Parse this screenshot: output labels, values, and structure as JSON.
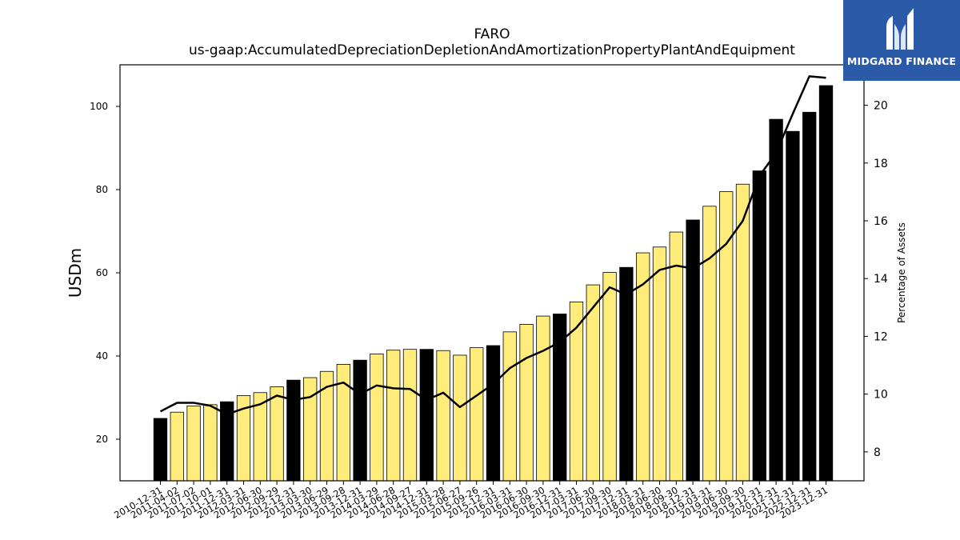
{
  "chart_data": {
    "type": "bar",
    "title": "FARO",
    "subtitle": "us-gaap:AccumulatedDepreciationDepletionAndAmortizationPropertyPlantAndEquipment",
    "ylabel": "USDm",
    "y2label": "Percentage of Assets",
    "ylim": [
      10,
      110
    ],
    "y2lim": [
      7.0,
      21.4
    ],
    "yticks": [
      20,
      40,
      60,
      80,
      100
    ],
    "y2ticks": [
      8,
      10,
      12,
      14,
      16,
      18,
      20
    ],
    "categories": [
      "2010-12-31",
      "2011-04-02",
      "2011-07-02",
      "2011-10-01",
      "2011-12-31",
      "2012-03-31",
      "2012-06-30",
      "2012-09-29",
      "2012-12-31",
      "2013-03-30",
      "2013-06-29",
      "2013-09-28",
      "2013-12-31",
      "2014-03-29",
      "2014-06-28",
      "2014-09-27",
      "2014-12-31",
      "2015-03-28",
      "2015-06-27",
      "2015-09-26",
      "2015-12-31",
      "2016-03-31",
      "2016-06-30",
      "2016-09-30",
      "2016-12-31",
      "2017-03-31",
      "2017-06-30",
      "2017-09-30",
      "2017-12-31",
      "2018-03-31",
      "2018-06-30",
      "2018-09-30",
      "2018-12-31",
      "2019-03-31",
      "2019-06-30",
      "2019-09-30",
      "2019-12-31",
      "2020-12-31",
      "2021-12-31",
      "2022-12-31",
      "2023-12-31"
    ],
    "series": [
      {
        "type": "bar",
        "values": [
          25.0,
          26.5,
          28.0,
          28.3,
          29.0,
          30.5,
          31.2,
          32.6,
          34.2,
          34.8,
          36.3,
          38.0,
          39.0,
          40.5,
          41.4,
          41.6,
          41.6,
          41.3,
          40.2,
          42.0,
          42.5,
          45.8,
          47.6,
          49.6,
          50.1,
          53.0,
          57.1,
          60.1,
          61.3,
          64.8,
          66.2,
          69.8,
          72.7,
          76.0,
          79.5,
          81.3,
          84.5,
          96.9,
          94.0,
          98.6,
          105.0
        ],
        "colors": [
          "#000000",
          "#ffec7b",
          "#ffec7b",
          "#ffec7b",
          "#000000",
          "#ffec7b",
          "#ffec7b",
          "#ffec7b",
          "#000000",
          "#ffec7b",
          "#ffec7b",
          "#ffec7b",
          "#000000",
          "#ffec7b",
          "#ffec7b",
          "#ffec7b",
          "#000000",
          "#ffec7b",
          "#ffec7b",
          "#ffec7b",
          "#000000",
          "#ffec7b",
          "#ffec7b",
          "#ffec7b",
          "#000000",
          "#ffec7b",
          "#ffec7b",
          "#ffec7b",
          "#000000",
          "#ffec7b",
          "#ffec7b",
          "#ffec7b",
          "#000000",
          "#ffec7b",
          "#ffec7b",
          "#ffec7b",
          "#000000",
          "#000000",
          "#000000",
          "#000000",
          "#000000"
        ]
      },
      {
        "type": "line",
        "axis": "right",
        "values": [
          9.4,
          9.7,
          9.7,
          9.6,
          9.3,
          9.5,
          9.65,
          9.95,
          9.8,
          9.9,
          10.25,
          10.4,
          10.0,
          10.3,
          10.2,
          10.18,
          9.8,
          10.05,
          9.55,
          9.95,
          10.35,
          10.9,
          11.25,
          11.5,
          11.8,
          12.3,
          13.0,
          13.7,
          13.45,
          13.8,
          14.3,
          14.45,
          14.35,
          14.7,
          15.2,
          16.0,
          17.55,
          18.35,
          19.7,
          21.0,
          20.95
        ],
        "color": "#000000"
      }
    ],
    "grid": false
  },
  "logo": {
    "text": "MIDGARD FINANCE",
    "bg": "#2b5aa8"
  }
}
